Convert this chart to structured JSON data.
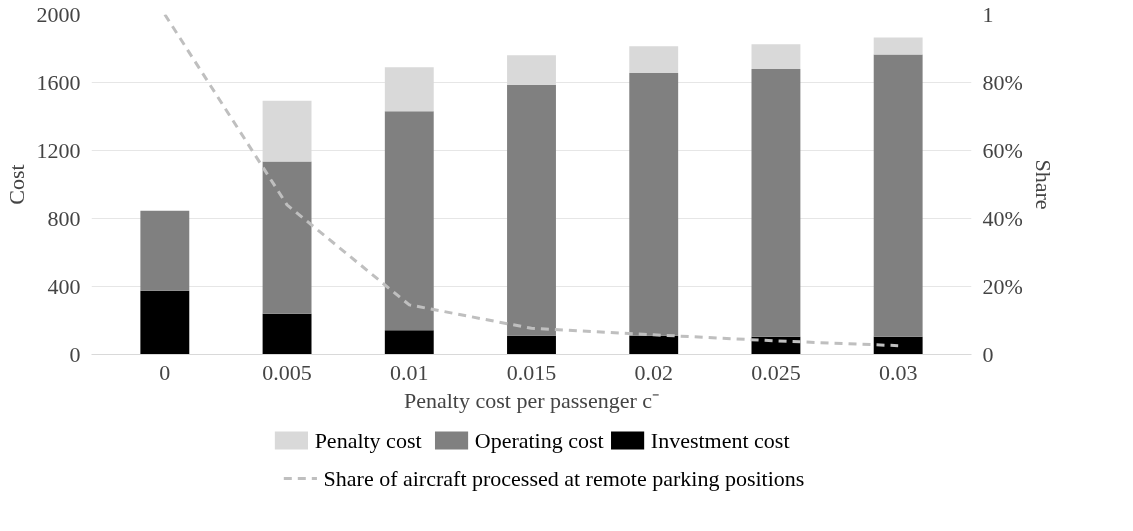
{
  "chart_data": {
    "type": "bar",
    "stacked": true,
    "xlabel": "Penalty cost per passenger c⁻",
    "ylabel": "Cost",
    "y2label": "Share",
    "categories": [
      "0",
      "0.005",
      "0.01",
      "0.015",
      "0.02",
      "0.025",
      "0.03"
    ],
    "series": [
      {
        "name": "Investment cost",
        "color": "#000000",
        "values": [
          375,
          240,
          142,
          111,
          110,
          104,
          104
        ]
      },
      {
        "name": "Operating cost",
        "color": "#808080",
        "values": [
          470,
          895,
          1289,
          1476,
          1546,
          1575,
          1661
        ]
      },
      {
        "name": "Penalty cost",
        "color": "#d9d9d9",
        "values": [
          0,
          358,
          258,
          173,
          157,
          146,
          100
        ]
      },
      {
        "name": "Share of aircraft processed at remote parking positions",
        "type": "line",
        "axis": "y2",
        "color": "#bfbfbf",
        "line_style": "dashed",
        "values": [
          1.0,
          0.44,
          0.146,
          0.077,
          0.058,
          0.04,
          0.026
        ]
      }
    ],
    "ylim": [
      0,
      2000
    ],
    "yticks": [
      0,
      400,
      800,
      1200,
      1600,
      2000
    ],
    "y2lim": [
      0,
      1
    ],
    "y2ticks": [
      0,
      {
        "value": 0.2,
        "label": "20%"
      },
      {
        "value": 0.4,
        "label": "40%"
      },
      {
        "value": 0.6,
        "label": "60%"
      },
      {
        "value": 0.8,
        "label": "80%"
      },
      1
    ],
    "grid": "y",
    "legend": "bottom",
    "marker": "none"
  }
}
